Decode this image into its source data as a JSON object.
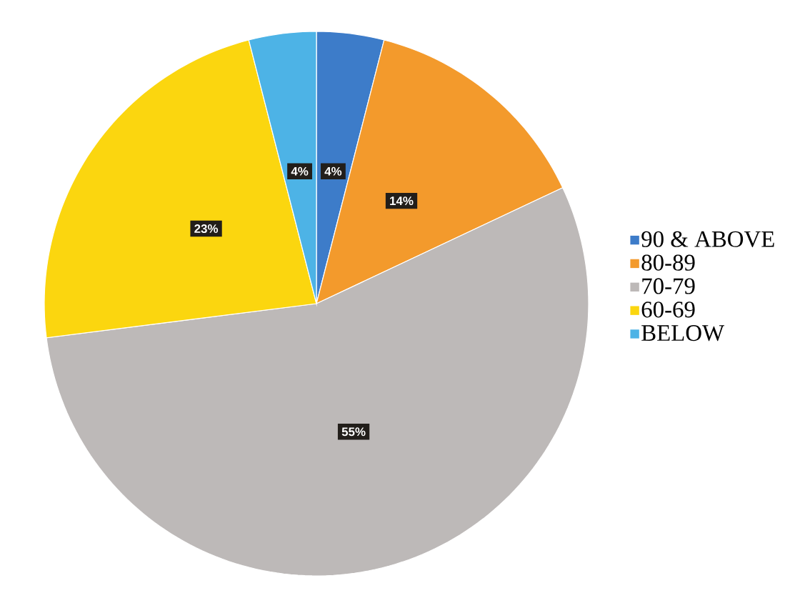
{
  "chart_data": {
    "type": "pie",
    "categories": [
      "90 & ABOVE",
      "80-89",
      "70-79",
      "60-69",
      "BELOW"
    ],
    "values": [
      4,
      14,
      55,
      23,
      4
    ],
    "colors": [
      "#3d7cc9",
      "#f39a2c",
      "#bdb9b8",
      "#fbd60f",
      "#4db3e6"
    ],
    "value_labels": [
      "4%",
      "14%",
      "55%",
      "23%",
      "4%"
    ],
    "legend": "right"
  }
}
